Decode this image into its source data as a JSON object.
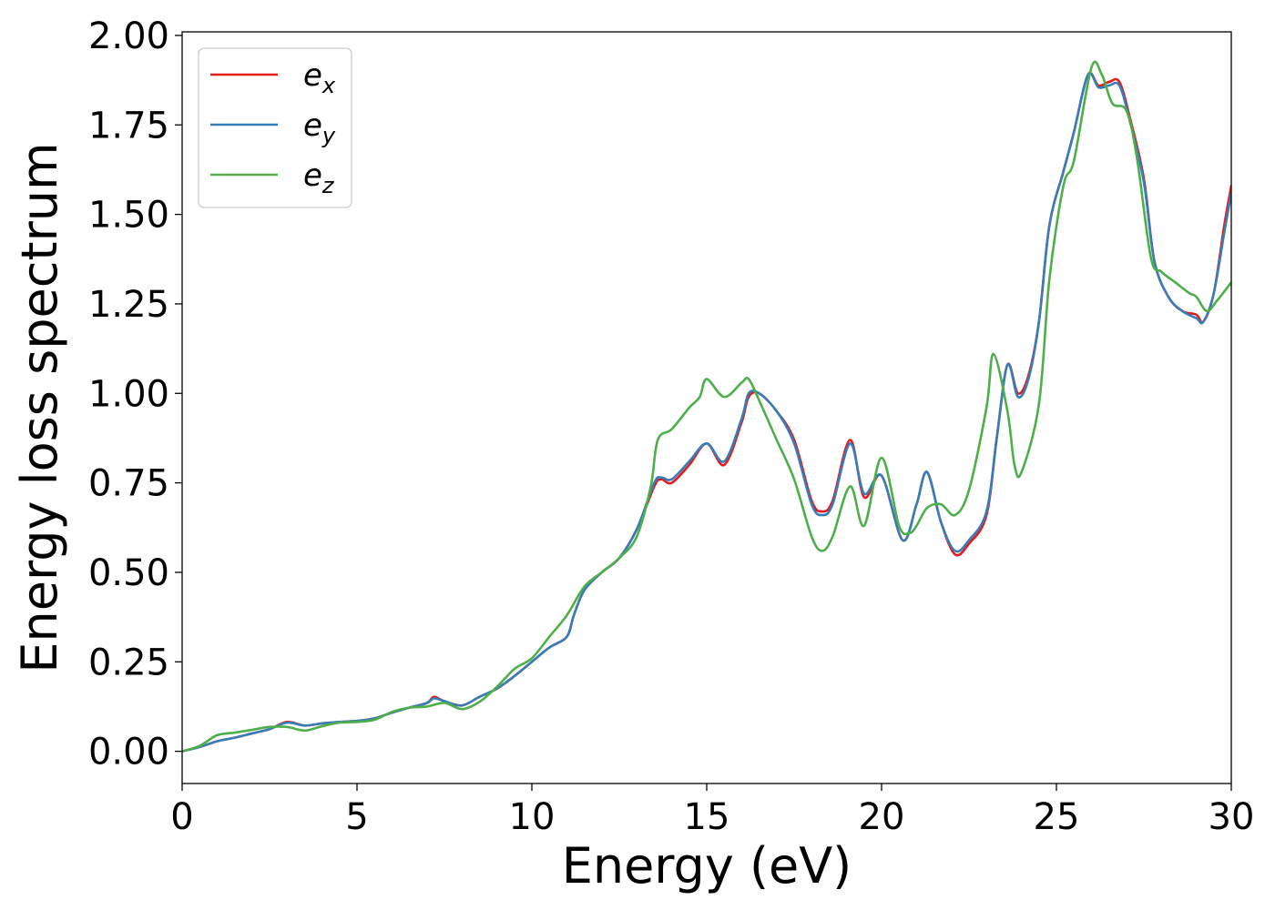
{
  "chart_data": {
    "type": "line",
    "xlabel": "Energy (eV)",
    "ylabel": "Energy loss spectrum",
    "xlim": [
      0,
      30
    ],
    "ylim": [
      -0.09,
      2.01
    ],
    "xticks": [
      0,
      5,
      10,
      15,
      20,
      25,
      30
    ],
    "xtick_labels": [
      "0",
      "5",
      "10",
      "15",
      "20",
      "25",
      "30"
    ],
    "yticks": [
      0,
      0.25,
      0.5,
      0.75,
      1.0,
      1.25,
      1.5,
      1.75,
      2.0
    ],
    "ytick_labels": [
      "0.00",
      "0.25",
      "0.50",
      "0.75",
      "1.00",
      "1.25",
      "1.50",
      "1.75",
      "2.00"
    ],
    "grid": false,
    "legend_position": "top-left",
    "series": [
      {
        "name": "e_x",
        "label_base": "e",
        "label_sub": "x",
        "color": "#e41a1c",
        "points": [
          [
            0,
            0
          ],
          [
            0.5,
            0.012
          ],
          [
            1,
            0.028
          ],
          [
            1.5,
            0.038
          ],
          [
            2,
            0.05
          ],
          [
            2.5,
            0.062
          ],
          [
            3,
            0.082
          ],
          [
            3.5,
            0.072
          ],
          [
            4,
            0.078
          ],
          [
            4.5,
            0.082
          ],
          [
            5,
            0.085
          ],
          [
            5.5,
            0.092
          ],
          [
            6,
            0.108
          ],
          [
            6.5,
            0.122
          ],
          [
            7,
            0.135
          ],
          [
            7.2,
            0.152
          ],
          [
            7.5,
            0.14
          ],
          [
            8,
            0.128
          ],
          [
            8.5,
            0.152
          ],
          [
            9,
            0.175
          ],
          [
            9.5,
            0.21
          ],
          [
            10,
            0.25
          ],
          [
            10.5,
            0.29
          ],
          [
            11,
            0.32
          ],
          [
            11.2,
            0.38
          ],
          [
            11.5,
            0.45
          ],
          [
            12,
            0.5
          ],
          [
            12.5,
            0.54
          ],
          [
            13,
            0.62
          ],
          [
            13.5,
            0.74
          ],
          [
            13.7,
            0.76
          ],
          [
            14,
            0.75
          ],
          [
            14.5,
            0.8
          ],
          [
            15,
            0.86
          ],
          [
            15.5,
            0.8
          ],
          [
            16,
            0.92
          ],
          [
            16.2,
            0.99
          ],
          [
            16.5,
            1.0
          ],
          [
            17,
            0.95
          ],
          [
            17.5,
            0.87
          ],
          [
            18,
            0.7
          ],
          [
            18.3,
            0.67
          ],
          [
            18.6,
            0.7
          ],
          [
            19.1,
            0.87
          ],
          [
            19.5,
            0.71
          ],
          [
            20,
            0.77
          ],
          [
            20.6,
            0.59
          ],
          [
            21,
            0.69
          ],
          [
            21.3,
            0.78
          ],
          [
            21.7,
            0.64
          ],
          [
            22.1,
            0.55
          ],
          [
            22.5,
            0.58
          ],
          [
            23,
            0.66
          ],
          [
            23.3,
            0.88
          ],
          [
            23.6,
            1.08
          ],
          [
            23.9,
            1.0
          ],
          [
            24.2,
            1.05
          ],
          [
            24.5,
            1.2
          ],
          [
            24.8,
            1.47
          ],
          [
            25.2,
            1.62
          ],
          [
            25.5,
            1.73
          ],
          [
            25.9,
            1.89
          ],
          [
            26.2,
            1.86
          ],
          [
            26.5,
            1.87
          ],
          [
            26.8,
            1.87
          ],
          [
            27.1,
            1.77
          ],
          [
            27.5,
            1.6
          ],
          [
            27.8,
            1.37
          ],
          [
            28.2,
            1.27
          ],
          [
            28.6,
            1.23
          ],
          [
            29,
            1.22
          ],
          [
            29.2,
            1.2
          ],
          [
            29.5,
            1.28
          ],
          [
            29.8,
            1.47
          ],
          [
            30,
            1.58
          ]
        ]
      },
      {
        "name": "e_y",
        "label_base": "e",
        "label_sub": "y",
        "color": "#377eb8",
        "points": [
          [
            0,
            0
          ],
          [
            0.5,
            0.012
          ],
          [
            1,
            0.028
          ],
          [
            1.5,
            0.038
          ],
          [
            2,
            0.05
          ],
          [
            2.5,
            0.062
          ],
          [
            3,
            0.08
          ],
          [
            3.5,
            0.072
          ],
          [
            4,
            0.078
          ],
          [
            4.5,
            0.082
          ],
          [
            5,
            0.085
          ],
          [
            5.5,
            0.092
          ],
          [
            6,
            0.108
          ],
          [
            6.5,
            0.122
          ],
          [
            7,
            0.135
          ],
          [
            7.2,
            0.148
          ],
          [
            7.5,
            0.14
          ],
          [
            8,
            0.128
          ],
          [
            8.5,
            0.152
          ],
          [
            9,
            0.175
          ],
          [
            9.5,
            0.21
          ],
          [
            10,
            0.25
          ],
          [
            10.5,
            0.29
          ],
          [
            11,
            0.32
          ],
          [
            11.2,
            0.38
          ],
          [
            11.5,
            0.45
          ],
          [
            12,
            0.5
          ],
          [
            12.5,
            0.54
          ],
          [
            13,
            0.62
          ],
          [
            13.5,
            0.75
          ],
          [
            13.7,
            0.765
          ],
          [
            14,
            0.76
          ],
          [
            14.5,
            0.81
          ],
          [
            15,
            0.86
          ],
          [
            15.5,
            0.81
          ],
          [
            16,
            0.93
          ],
          [
            16.2,
            1.0
          ],
          [
            16.5,
            1.0
          ],
          [
            17,
            0.95
          ],
          [
            17.5,
            0.86
          ],
          [
            18,
            0.69
          ],
          [
            18.3,
            0.66
          ],
          [
            18.6,
            0.69
          ],
          [
            19.1,
            0.86
          ],
          [
            19.5,
            0.72
          ],
          [
            20,
            0.77
          ],
          [
            20.6,
            0.59
          ],
          [
            21,
            0.69
          ],
          [
            21.3,
            0.78
          ],
          [
            21.7,
            0.64
          ],
          [
            22.1,
            0.56
          ],
          [
            22.5,
            0.59
          ],
          [
            23,
            0.67
          ],
          [
            23.3,
            0.88
          ],
          [
            23.6,
            1.08
          ],
          [
            23.9,
            0.99
          ],
          [
            24.2,
            1.04
          ],
          [
            24.5,
            1.2
          ],
          [
            24.8,
            1.47
          ],
          [
            25.2,
            1.62
          ],
          [
            25.5,
            1.73
          ],
          [
            25.9,
            1.89
          ],
          [
            26.2,
            1.855
          ],
          [
            26.5,
            1.86
          ],
          [
            26.8,
            1.86
          ],
          [
            27.1,
            1.76
          ],
          [
            27.5,
            1.59
          ],
          [
            27.8,
            1.37
          ],
          [
            28.2,
            1.27
          ],
          [
            28.6,
            1.23
          ],
          [
            29,
            1.21
          ],
          [
            29.2,
            1.2
          ],
          [
            29.5,
            1.28
          ],
          [
            29.8,
            1.45
          ],
          [
            30,
            1.56
          ]
        ]
      },
      {
        "name": "e_z",
        "label_base": "e",
        "label_sub": "z",
        "color": "#4daf4a",
        "points": [
          [
            0,
            0
          ],
          [
            0.5,
            0.015
          ],
          [
            1,
            0.045
          ],
          [
            1.5,
            0.052
          ],
          [
            2,
            0.06
          ],
          [
            2.5,
            0.068
          ],
          [
            3,
            0.068
          ],
          [
            3.5,
            0.058
          ],
          [
            4,
            0.07
          ],
          [
            4.5,
            0.08
          ],
          [
            5,
            0.082
          ],
          [
            5.5,
            0.088
          ],
          [
            6,
            0.11
          ],
          [
            6.5,
            0.122
          ],
          [
            7,
            0.125
          ],
          [
            7.5,
            0.135
          ],
          [
            8,
            0.118
          ],
          [
            8.5,
            0.138
          ],
          [
            9,
            0.18
          ],
          [
            9.5,
            0.23
          ],
          [
            10,
            0.26
          ],
          [
            10.5,
            0.32
          ],
          [
            11,
            0.38
          ],
          [
            11.5,
            0.46
          ],
          [
            12,
            0.5
          ],
          [
            12.5,
            0.54
          ],
          [
            13,
            0.6
          ],
          [
            13.4,
            0.74
          ],
          [
            13.6,
            0.87
          ],
          [
            14,
            0.9
          ],
          [
            14.5,
            0.96
          ],
          [
            14.8,
            0.99
          ],
          [
            15,
            1.04
          ],
          [
            15.5,
            0.99
          ],
          [
            16,
            1.03
          ],
          [
            16.2,
            1.04
          ],
          [
            16.5,
            0.98
          ],
          [
            17,
            0.87
          ],
          [
            17.5,
            0.76
          ],
          [
            18,
            0.6
          ],
          [
            18.3,
            0.56
          ],
          [
            18.6,
            0.6
          ],
          [
            19.1,
            0.74
          ],
          [
            19.5,
            0.63
          ],
          [
            20,
            0.82
          ],
          [
            20.5,
            0.63
          ],
          [
            20.8,
            0.61
          ],
          [
            21,
            0.63
          ],
          [
            21.3,
            0.68
          ],
          [
            21.7,
            0.69
          ],
          [
            22.1,
            0.66
          ],
          [
            22.5,
            0.73
          ],
          [
            23,
            0.96
          ],
          [
            23.2,
            1.11
          ],
          [
            23.6,
            0.95
          ],
          [
            23.8,
            0.8
          ],
          [
            24,
            0.78
          ],
          [
            24.5,
            0.97
          ],
          [
            24.8,
            1.32
          ],
          [
            25.2,
            1.58
          ],
          [
            25.5,
            1.65
          ],
          [
            26,
            1.91
          ],
          [
            26.3,
            1.89
          ],
          [
            26.6,
            1.81
          ],
          [
            27,
            1.79
          ],
          [
            27.3,
            1.66
          ],
          [
            27.7,
            1.38
          ],
          [
            28,
            1.34
          ],
          [
            28.4,
            1.31
          ],
          [
            28.8,
            1.28
          ],
          [
            29,
            1.27
          ],
          [
            29.3,
            1.23
          ],
          [
            29.6,
            1.26
          ],
          [
            30,
            1.31
          ]
        ]
      }
    ]
  }
}
